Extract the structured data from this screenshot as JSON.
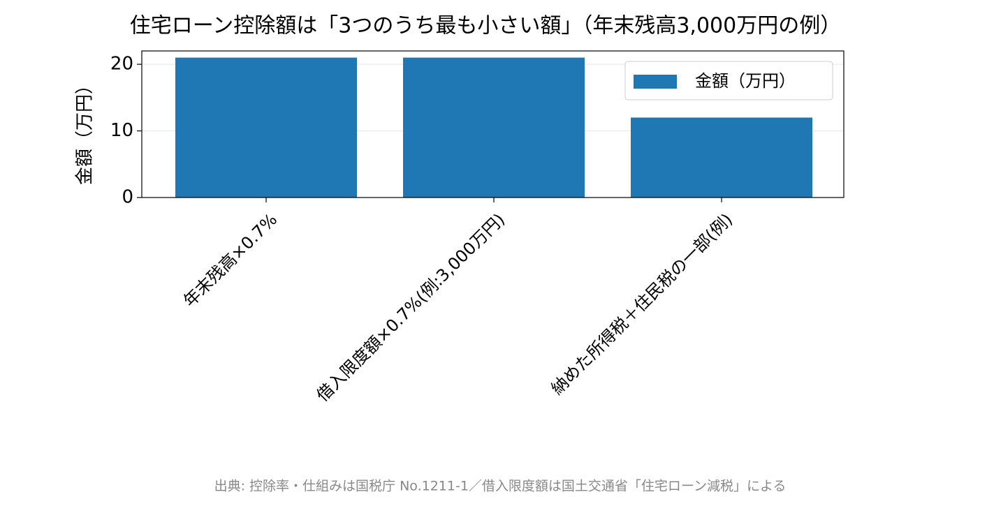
{
  "chart_data": {
    "type": "bar",
    "title": "住宅ローン控除額は「3つのうち最も小さい額」（年末残高3,000万円の例）",
    "categories": [
      "年末残高×0.7%",
      "借入限度額×0.7%(例:3,000万円)",
      "納めた所得税＋住民税の一部(例)"
    ],
    "series": [
      {
        "name": "金額（万円）",
        "color": "#1f77b4",
        "values": [
          21,
          21,
          12
        ]
      }
    ],
    "ylabel": "金額（万円）",
    "ylim": [
      0,
      22
    ],
    "yticks": [
      0,
      10,
      20
    ],
    "grid": true,
    "legend": "upper right",
    "note": "出典: 控除率・仕組みは国税庁 No.1211-1／借入限度額は国土交通省「住宅ローン減税」による"
  }
}
